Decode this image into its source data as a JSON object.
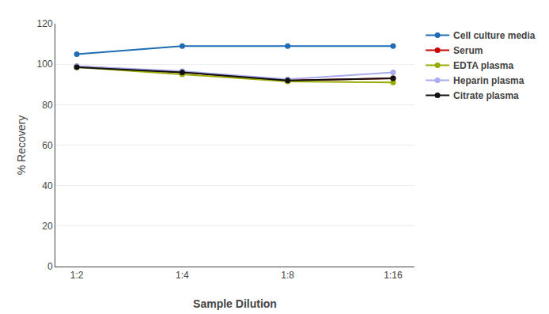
{
  "chart_data": {
    "type": "line",
    "categories": [
      "1:2",
      "1:4",
      "1:8",
      "1:16"
    ],
    "series": [
      {
        "name": "Cell culture media",
        "color": "#1f6cb5",
        "marker": "circle",
        "values": [
          105,
          109,
          109,
          109
        ]
      },
      {
        "name": "Serum",
        "color": "#cc0000",
        "marker": "circle",
        "values": [
          99,
          96,
          92,
          93
        ]
      },
      {
        "name": "EDTA plasma",
        "color": "#99aa00",
        "marker": "circle",
        "values": [
          98.5,
          95,
          91.5,
          91
        ]
      },
      {
        "name": "Heparin plasma",
        "color": "#aaaaee",
        "marker": "circle",
        "values": [
          99,
          96.5,
          92.5,
          96
        ]
      },
      {
        "name": "Citrate plasma",
        "color": "#111111",
        "marker": "circle",
        "values": [
          98.5,
          96,
          92,
          93
        ]
      }
    ],
    "xlabel": "Sample Dilution",
    "ylabel": "% Recovery",
    "ylim": [
      0,
      120
    ],
    "yticks": [
      0,
      20,
      40,
      60,
      80,
      100,
      120
    ],
    "grid": "y",
    "legend": "right"
  }
}
